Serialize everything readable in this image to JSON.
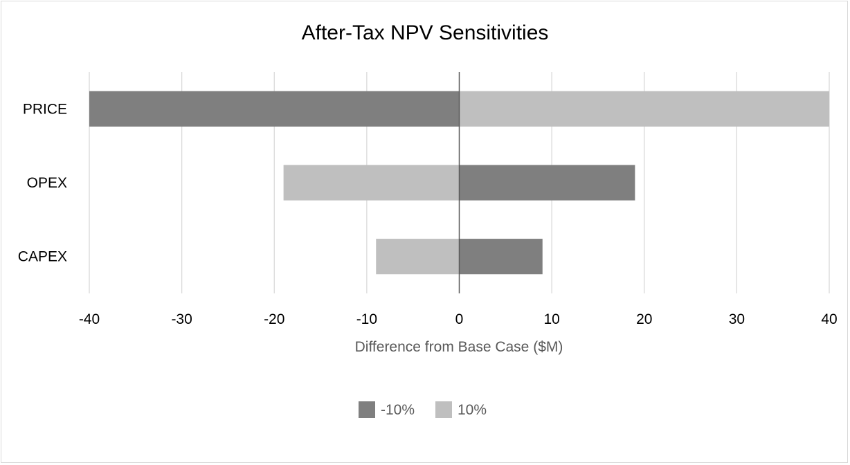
{
  "chart_data": {
    "type": "bar",
    "orientation": "horizontal",
    "title": "After-Tax NPV Sensitivities",
    "xlabel": "Difference from Base Case ($M)",
    "ylabel": "",
    "categories": [
      "PRICE",
      "OPEX",
      "CAPEX"
    ],
    "xlim": [
      -40,
      40
    ],
    "xticks": [
      -40,
      -30,
      -20,
      -10,
      0,
      10,
      20,
      30,
      40
    ],
    "grid": true,
    "legend_position": "bottom",
    "series": [
      {
        "name": "-10%",
        "color": "#7f7f7f",
        "values": [
          -40,
          19,
          9
        ]
      },
      {
        "name": "10%",
        "color": "#bfbfbf",
        "values": [
          40,
          -19,
          -9
        ]
      }
    ]
  }
}
